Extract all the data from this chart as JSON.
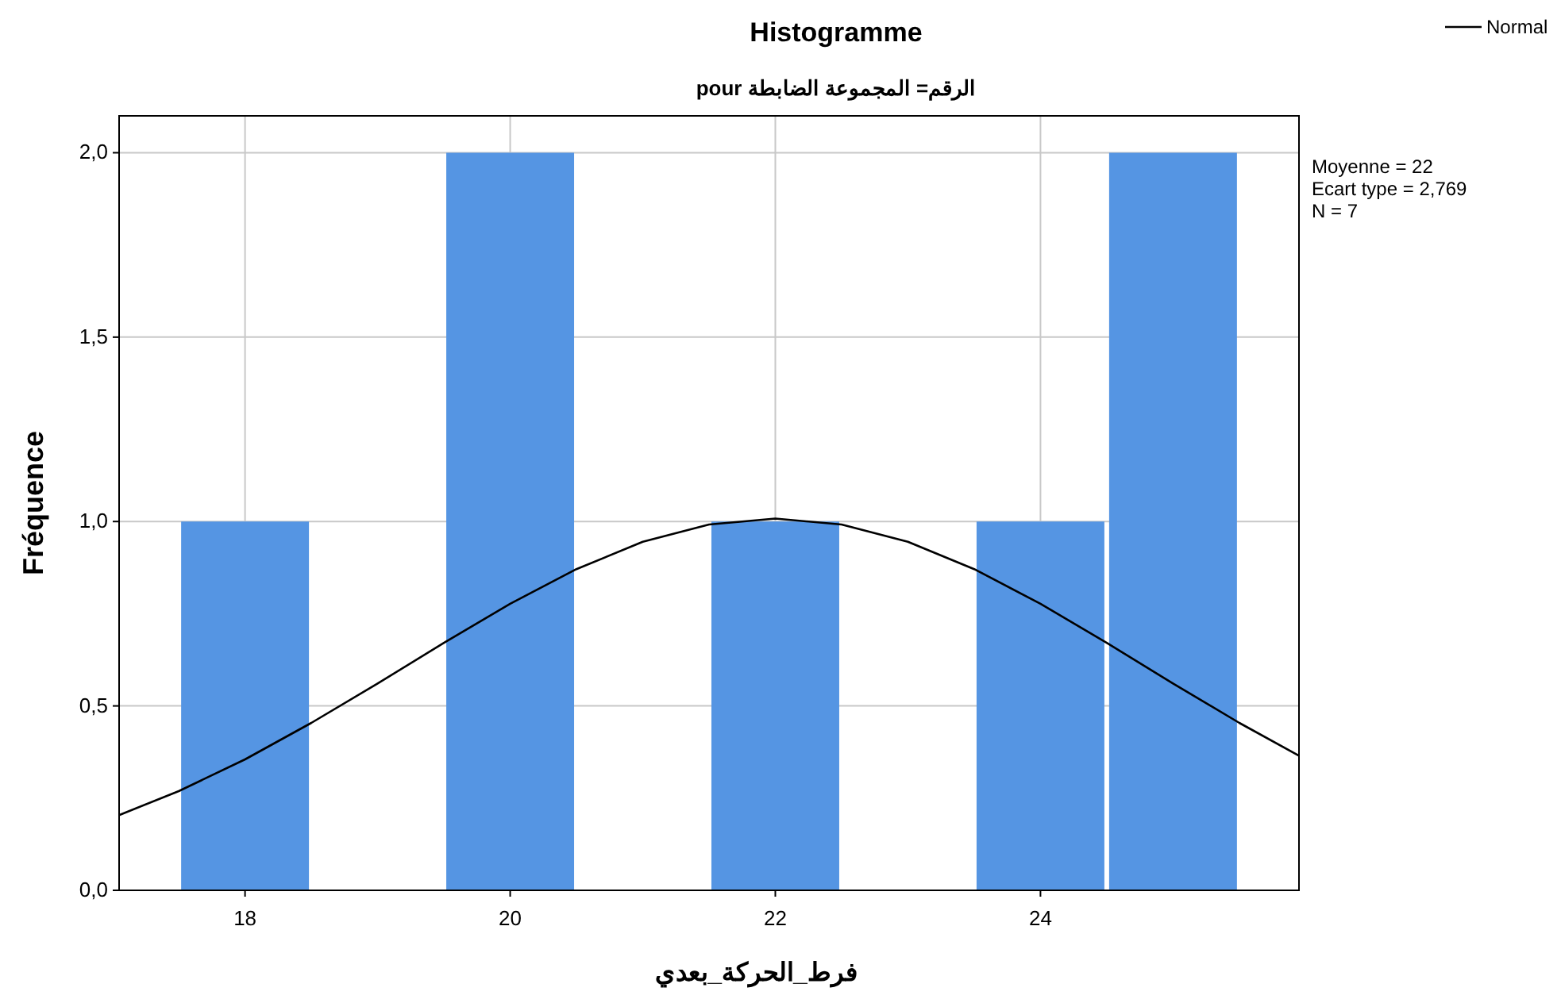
{
  "chart_data": {
    "type": "histogram",
    "title": "Histogramme",
    "subtitle": "pour الرقم= المجموعة الضابطة",
    "xlabel": "فرط_الحركة_بعدي",
    "ylabel": "Fréquence",
    "bins": [
      17.5,
      18.5,
      19.5,
      20.5,
      21.5,
      22.5,
      23.5,
      24.5,
      25.5
    ],
    "values": [
      1,
      0,
      2,
      0,
      1,
      0,
      1,
      2
    ],
    "color": "#5595e3",
    "series": [
      {
        "name": "Normal",
        "type": "line",
        "color": "#000000",
        "x": [
          17.05,
          17.5,
          18,
          18.5,
          19,
          19.5,
          20,
          20.5,
          21,
          21.5,
          22,
          22.5,
          23,
          23.5,
          24,
          24.5,
          25,
          25.5,
          25.95
        ],
        "values": [
          0.204,
          0.269,
          0.355,
          0.454,
          0.561,
          0.671,
          0.777,
          0.871,
          0.945,
          0.992,
          1.008,
          0.992,
          0.945,
          0.871,
          0.777,
          0.671,
          0.561,
          0.454,
          0.365
        ]
      }
    ],
    "annotations": [
      "Moyenne = 22",
      "Ecart type = 2,769",
      "N = 7"
    ],
    "xlim": [
      17.05,
      25.95
    ],
    "xticks": [
      18,
      20,
      22,
      24
    ],
    "ylim": [
      0,
      2.1
    ],
    "yticks": [
      {
        "value": 0,
        "label": "0,0"
      },
      {
        "value": 0.5,
        "label": "0,5"
      },
      {
        "value": 1,
        "label": "1,0"
      },
      {
        "value": 1.5,
        "label": "1,5"
      },
      {
        "value": 2,
        "label": "2,0"
      }
    ],
    "grid": true,
    "legend": "top right"
  }
}
